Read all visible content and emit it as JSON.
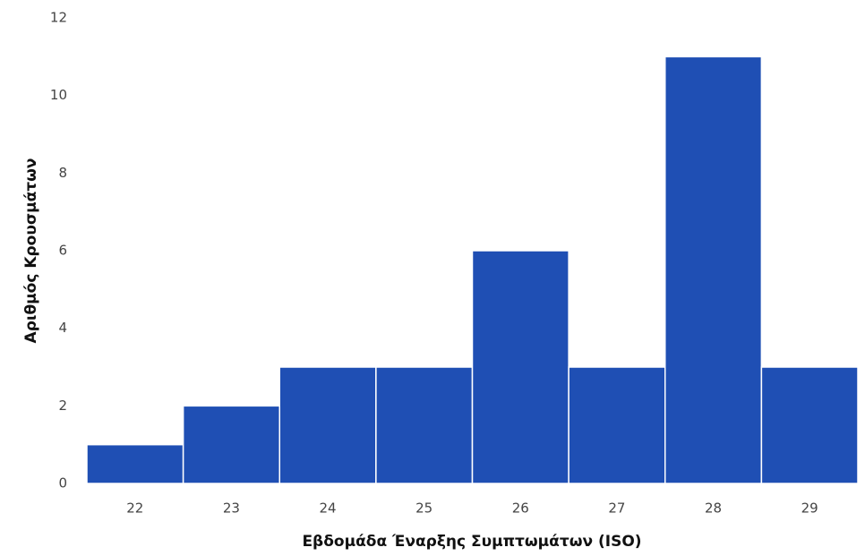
{
  "chart_data": {
    "type": "bar",
    "categories": [
      "22",
      "23",
      "24",
      "25",
      "26",
      "27",
      "28",
      "29"
    ],
    "values": [
      1,
      2,
      3,
      3,
      6,
      3,
      11,
      3
    ],
    "color": "#1f4fb4",
    "ylim": [
      0,
      12
    ],
    "yticks": [
      0,
      2,
      4,
      6,
      8,
      10,
      12
    ],
    "grid": false,
    "x_label": "Εβδομάδα Έναρξης Συμπτωμάτων (ISO)",
    "y_label": "Αριθμός Κρουσμάτων"
  }
}
